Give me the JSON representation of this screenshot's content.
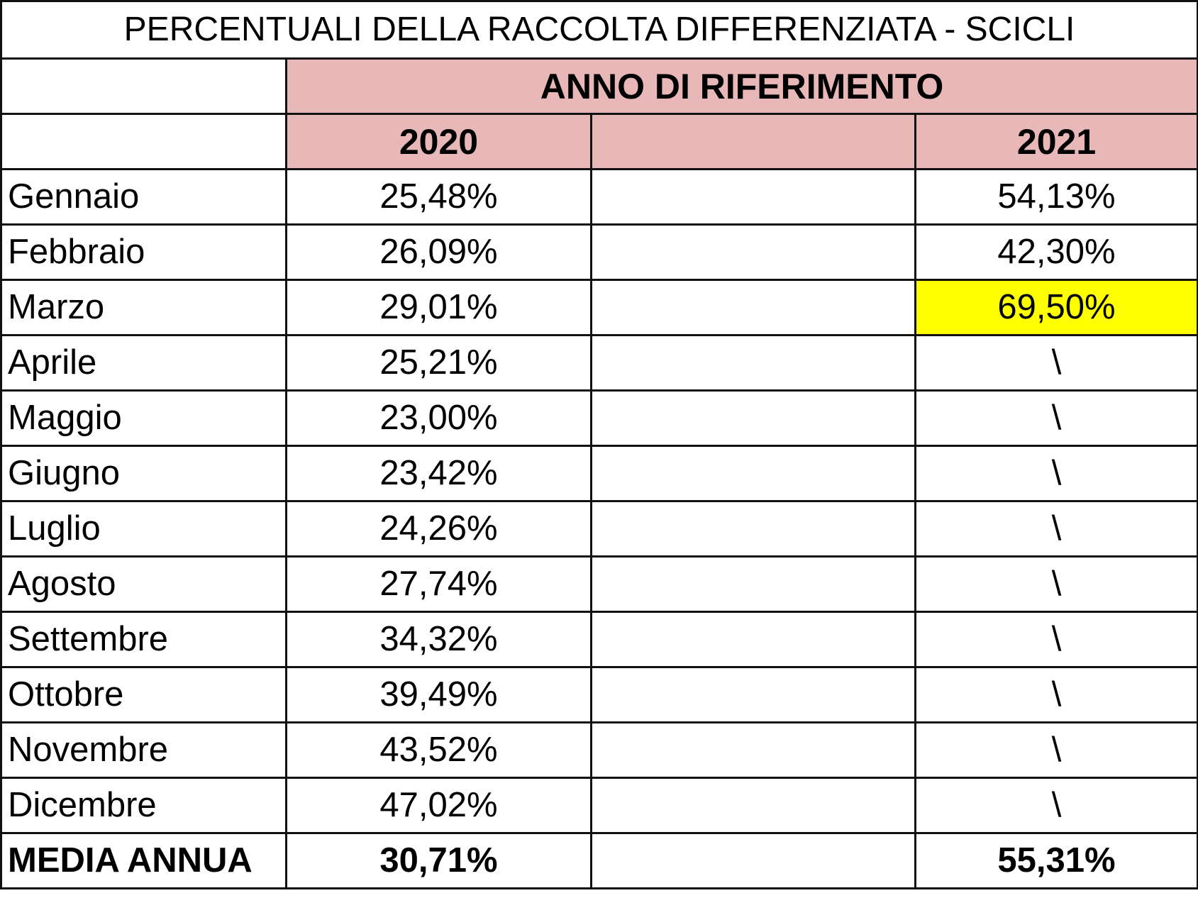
{
  "title": "PERCENTUALI DELLA RACCOLTA DIFFERENZIATA - SCICLI",
  "header": {
    "group_label": "ANNO DI RIFERIMENTO",
    "year_a": "2020",
    "year_b": "2021"
  },
  "highlight_color": "#ffff00",
  "header_color": "#e8b8b8",
  "rows": [
    {
      "month": "Gennaio",
      "y2020": "25,48%",
      "y2021": "54,13%"
    },
    {
      "month": "Febbraio",
      "y2020": "26,09%",
      "y2021": "42,30%"
    },
    {
      "month": "Marzo",
      "y2020": "29,01%",
      "y2021": "69,50%",
      "highlight": true
    },
    {
      "month": "Aprile",
      "y2020": "25,21%",
      "y2021": "\\"
    },
    {
      "month": "Maggio",
      "y2020": "23,00%",
      "y2021": "\\"
    },
    {
      "month": "Giugno",
      "y2020": "23,42%",
      "y2021": "\\"
    },
    {
      "month": "Luglio",
      "y2020": "24,26%",
      "y2021": "\\"
    },
    {
      "month": "Agosto",
      "y2020": "27,74%",
      "y2021": "\\"
    },
    {
      "month": "Settembre",
      "y2020": "34,32%",
      "y2021": "\\"
    },
    {
      "month": "Ottobre",
      "y2020": "39,49%",
      "y2021": "\\"
    },
    {
      "month": "Novembre",
      "y2020": "43,52%",
      "y2021": "\\"
    },
    {
      "month": "Dicembre",
      "y2020": "47,02%",
      "y2021": "\\"
    }
  ],
  "total": {
    "label": "MEDIA ANNUA",
    "y2020": "30,71%",
    "y2021": "55,31%"
  }
}
